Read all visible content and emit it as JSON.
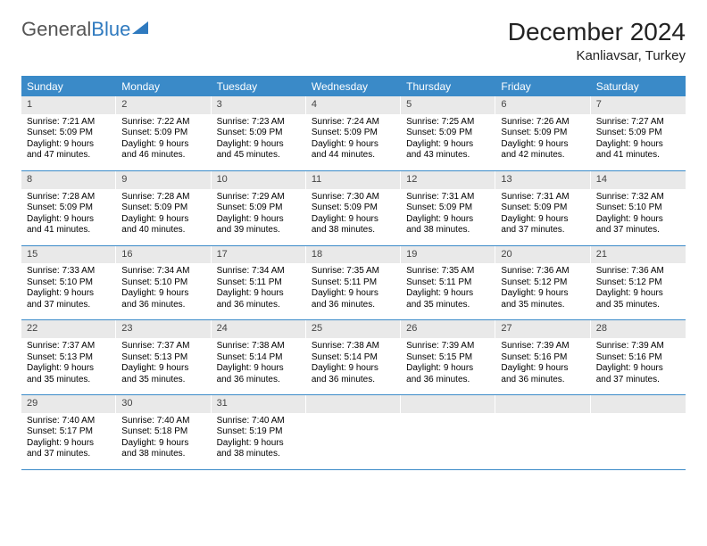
{
  "logo": {
    "text_gray": "General",
    "text_blue": "Blue"
  },
  "title": "December 2024",
  "location": "Kanliavsar, Turkey",
  "colors": {
    "header_bg": "#3a8ac8",
    "header_fg": "#ffffff",
    "daynum_bg": "#e9e9e9",
    "rule": "#3a8ac8",
    "logo_gray": "#555555",
    "logo_blue": "#2f7abf",
    "page_bg": "#ffffff"
  },
  "typography": {
    "title_fontsize_pt": 21,
    "location_fontsize_pt": 11,
    "dayheader_fontsize_pt": 9,
    "cell_fontsize_pt": 7.5
  },
  "day_headers": [
    "Sunday",
    "Monday",
    "Tuesday",
    "Wednesday",
    "Thursday",
    "Friday",
    "Saturday"
  ],
  "weeks": [
    [
      {
        "n": "1",
        "sr": "Sunrise: 7:21 AM",
        "ss": "Sunset: 5:09 PM",
        "dl1": "Daylight: 9 hours",
        "dl2": "and 47 minutes."
      },
      {
        "n": "2",
        "sr": "Sunrise: 7:22 AM",
        "ss": "Sunset: 5:09 PM",
        "dl1": "Daylight: 9 hours",
        "dl2": "and 46 minutes."
      },
      {
        "n": "3",
        "sr": "Sunrise: 7:23 AM",
        "ss": "Sunset: 5:09 PM",
        "dl1": "Daylight: 9 hours",
        "dl2": "and 45 minutes."
      },
      {
        "n": "4",
        "sr": "Sunrise: 7:24 AM",
        "ss": "Sunset: 5:09 PM",
        "dl1": "Daylight: 9 hours",
        "dl2": "and 44 minutes."
      },
      {
        "n": "5",
        "sr": "Sunrise: 7:25 AM",
        "ss": "Sunset: 5:09 PM",
        "dl1": "Daylight: 9 hours",
        "dl2": "and 43 minutes."
      },
      {
        "n": "6",
        "sr": "Sunrise: 7:26 AM",
        "ss": "Sunset: 5:09 PM",
        "dl1": "Daylight: 9 hours",
        "dl2": "and 42 minutes."
      },
      {
        "n": "7",
        "sr": "Sunrise: 7:27 AM",
        "ss": "Sunset: 5:09 PM",
        "dl1": "Daylight: 9 hours",
        "dl2": "and 41 minutes."
      }
    ],
    [
      {
        "n": "8",
        "sr": "Sunrise: 7:28 AM",
        "ss": "Sunset: 5:09 PM",
        "dl1": "Daylight: 9 hours",
        "dl2": "and 41 minutes."
      },
      {
        "n": "9",
        "sr": "Sunrise: 7:28 AM",
        "ss": "Sunset: 5:09 PM",
        "dl1": "Daylight: 9 hours",
        "dl2": "and 40 minutes."
      },
      {
        "n": "10",
        "sr": "Sunrise: 7:29 AM",
        "ss": "Sunset: 5:09 PM",
        "dl1": "Daylight: 9 hours",
        "dl2": "and 39 minutes."
      },
      {
        "n": "11",
        "sr": "Sunrise: 7:30 AM",
        "ss": "Sunset: 5:09 PM",
        "dl1": "Daylight: 9 hours",
        "dl2": "and 38 minutes."
      },
      {
        "n": "12",
        "sr": "Sunrise: 7:31 AM",
        "ss": "Sunset: 5:09 PM",
        "dl1": "Daylight: 9 hours",
        "dl2": "and 38 minutes."
      },
      {
        "n": "13",
        "sr": "Sunrise: 7:31 AM",
        "ss": "Sunset: 5:09 PM",
        "dl1": "Daylight: 9 hours",
        "dl2": "and 37 minutes."
      },
      {
        "n": "14",
        "sr": "Sunrise: 7:32 AM",
        "ss": "Sunset: 5:10 PM",
        "dl1": "Daylight: 9 hours",
        "dl2": "and 37 minutes."
      }
    ],
    [
      {
        "n": "15",
        "sr": "Sunrise: 7:33 AM",
        "ss": "Sunset: 5:10 PM",
        "dl1": "Daylight: 9 hours",
        "dl2": "and 37 minutes."
      },
      {
        "n": "16",
        "sr": "Sunrise: 7:34 AM",
        "ss": "Sunset: 5:10 PM",
        "dl1": "Daylight: 9 hours",
        "dl2": "and 36 minutes."
      },
      {
        "n": "17",
        "sr": "Sunrise: 7:34 AM",
        "ss": "Sunset: 5:11 PM",
        "dl1": "Daylight: 9 hours",
        "dl2": "and 36 minutes."
      },
      {
        "n": "18",
        "sr": "Sunrise: 7:35 AM",
        "ss": "Sunset: 5:11 PM",
        "dl1": "Daylight: 9 hours",
        "dl2": "and 36 minutes."
      },
      {
        "n": "19",
        "sr": "Sunrise: 7:35 AM",
        "ss": "Sunset: 5:11 PM",
        "dl1": "Daylight: 9 hours",
        "dl2": "and 35 minutes."
      },
      {
        "n": "20",
        "sr": "Sunrise: 7:36 AM",
        "ss": "Sunset: 5:12 PM",
        "dl1": "Daylight: 9 hours",
        "dl2": "and 35 minutes."
      },
      {
        "n": "21",
        "sr": "Sunrise: 7:36 AM",
        "ss": "Sunset: 5:12 PM",
        "dl1": "Daylight: 9 hours",
        "dl2": "and 35 minutes."
      }
    ],
    [
      {
        "n": "22",
        "sr": "Sunrise: 7:37 AM",
        "ss": "Sunset: 5:13 PM",
        "dl1": "Daylight: 9 hours",
        "dl2": "and 35 minutes."
      },
      {
        "n": "23",
        "sr": "Sunrise: 7:37 AM",
        "ss": "Sunset: 5:13 PM",
        "dl1": "Daylight: 9 hours",
        "dl2": "and 35 minutes."
      },
      {
        "n": "24",
        "sr": "Sunrise: 7:38 AM",
        "ss": "Sunset: 5:14 PM",
        "dl1": "Daylight: 9 hours",
        "dl2": "and 36 minutes."
      },
      {
        "n": "25",
        "sr": "Sunrise: 7:38 AM",
        "ss": "Sunset: 5:14 PM",
        "dl1": "Daylight: 9 hours",
        "dl2": "and 36 minutes."
      },
      {
        "n": "26",
        "sr": "Sunrise: 7:39 AM",
        "ss": "Sunset: 5:15 PM",
        "dl1": "Daylight: 9 hours",
        "dl2": "and 36 minutes."
      },
      {
        "n": "27",
        "sr": "Sunrise: 7:39 AM",
        "ss": "Sunset: 5:16 PM",
        "dl1": "Daylight: 9 hours",
        "dl2": "and 36 minutes."
      },
      {
        "n": "28",
        "sr": "Sunrise: 7:39 AM",
        "ss": "Sunset: 5:16 PM",
        "dl1": "Daylight: 9 hours",
        "dl2": "and 37 minutes."
      }
    ],
    [
      {
        "n": "29",
        "sr": "Sunrise: 7:40 AM",
        "ss": "Sunset: 5:17 PM",
        "dl1": "Daylight: 9 hours",
        "dl2": "and 37 minutes."
      },
      {
        "n": "30",
        "sr": "Sunrise: 7:40 AM",
        "ss": "Sunset: 5:18 PM",
        "dl1": "Daylight: 9 hours",
        "dl2": "and 38 minutes."
      },
      {
        "n": "31",
        "sr": "Sunrise: 7:40 AM",
        "ss": "Sunset: 5:19 PM",
        "dl1": "Daylight: 9 hours",
        "dl2": "and 38 minutes."
      },
      {
        "empty": true
      },
      {
        "empty": true
      },
      {
        "empty": true
      },
      {
        "empty": true
      }
    ]
  ]
}
